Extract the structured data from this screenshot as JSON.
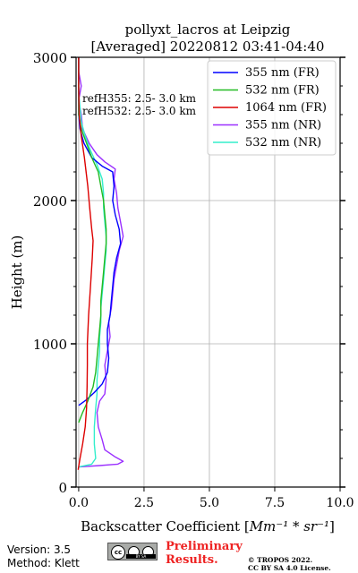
{
  "chart_data": {
    "type": "line",
    "title_line1": "pollyxt_lacros at Leipzig",
    "title_line2": "[Averaged] 20220812 03:41-04:40",
    "xlabel": "Backscatter Coefficient [",
    "xlabel_unit": "Mm⁻¹ * sr⁻¹",
    "xlabel_end": "]",
    "ylabel": "Height (m)",
    "xlim": [
      -0.1,
      10.0
    ],
    "ylim": [
      0,
      3000
    ],
    "x_ticks": [
      0.0,
      2.5,
      5.0,
      7.5,
      10.0
    ],
    "x_tick_labels": [
      "0.0",
      "2.5",
      "5.0",
      "7.5",
      "10.0"
    ],
    "y_ticks": [
      0,
      1000,
      2000,
      3000
    ],
    "y_tick_labels": [
      "0",
      "1000",
      "2000",
      "3000"
    ],
    "grid": true,
    "legend_position": "top-right",
    "annotations": [
      "refH355:  2.5- 3.0 km",
      "refH532:  2.5- 3.0 km"
    ],
    "series": [
      {
        "name": "355 nm (FR)",
        "color": "#0000ff",
        "points": [
          [
            0.0,
            570
          ],
          [
            0.3,
            610
          ],
          [
            0.6,
            660
          ],
          [
            0.9,
            720
          ],
          [
            1.1,
            800
          ],
          [
            1.15,
            900
          ],
          [
            1.1,
            1000
          ],
          [
            1.1,
            1100
          ],
          [
            1.2,
            1200
          ],
          [
            1.25,
            1300
          ],
          [
            1.3,
            1400
          ],
          [
            1.35,
            1500
          ],
          [
            1.45,
            1600
          ],
          [
            1.6,
            1700
          ],
          [
            1.55,
            1800
          ],
          [
            1.4,
            1900
          ],
          [
            1.3,
            2000
          ],
          [
            1.35,
            2100
          ],
          [
            1.3,
            2200
          ],
          [
            0.9,
            2240
          ],
          [
            0.5,
            2300
          ],
          [
            0.2,
            2400
          ],
          [
            0.05,
            2500
          ],
          [
            0.0,
            2600
          ],
          [
            0.0,
            2800
          ],
          [
            0.0,
            3000
          ]
        ]
      },
      {
        "name": "532 nm (FR)",
        "color": "#22bb22",
        "points": [
          [
            0.0,
            450
          ],
          [
            0.15,
            520
          ],
          [
            0.35,
            600
          ],
          [
            0.55,
            700
          ],
          [
            0.65,
            800
          ],
          [
            0.7,
            900
          ],
          [
            0.75,
            1000
          ],
          [
            0.8,
            1100
          ],
          [
            0.85,
            1200
          ],
          [
            0.85,
            1300
          ],
          [
            0.9,
            1400
          ],
          [
            0.95,
            1500
          ],
          [
            1.0,
            1600
          ],
          [
            1.05,
            1700
          ],
          [
            1.05,
            1800
          ],
          [
            1.0,
            1900
          ],
          [
            0.95,
            2000
          ],
          [
            0.85,
            2100
          ],
          [
            0.75,
            2200
          ],
          [
            0.5,
            2300
          ],
          [
            0.3,
            2400
          ],
          [
            0.1,
            2500
          ],
          [
            0.0,
            2600
          ],
          [
            0.0,
            3000
          ]
        ]
      },
      {
        "name": "1064 nm (FR)",
        "color": "#dd0000",
        "points": [
          [
            -0.02,
            120
          ],
          [
            0.05,
            200
          ],
          [
            0.15,
            300
          ],
          [
            0.25,
            420
          ],
          [
            0.3,
            550
          ],
          [
            0.32,
            700
          ],
          [
            0.33,
            850
          ],
          [
            0.33,
            1000
          ],
          [
            0.38,
            1200
          ],
          [
            0.45,
            1400
          ],
          [
            0.52,
            1600
          ],
          [
            0.55,
            1720
          ],
          [
            0.5,
            1800
          ],
          [
            0.42,
            1950
          ],
          [
            0.35,
            2100
          ],
          [
            0.22,
            2300
          ],
          [
            0.1,
            2450
          ],
          [
            0.02,
            2600
          ],
          [
            0.0,
            2800
          ],
          [
            0.0,
            3000
          ]
        ]
      },
      {
        "name": "355 nm (NR)",
        "color": "#9b30ff",
        "points": [
          [
            0.0,
            140
          ],
          [
            0.8,
            150
          ],
          [
            1.5,
            160
          ],
          [
            1.7,
            180
          ],
          [
            1.4,
            210
          ],
          [
            1.0,
            260
          ],
          [
            0.9,
            330
          ],
          [
            0.75,
            420
          ],
          [
            0.7,
            520
          ],
          [
            0.8,
            600
          ],
          [
            1.0,
            650
          ],
          [
            1.05,
            750
          ],
          [
            1.0,
            850
          ],
          [
            1.1,
            950
          ],
          [
            1.2,
            1050
          ],
          [
            1.15,
            1150
          ],
          [
            1.25,
            1250
          ],
          [
            1.3,
            1350
          ],
          [
            1.35,
            1450
          ],
          [
            1.45,
            1550
          ],
          [
            1.55,
            1650
          ],
          [
            1.7,
            1750
          ],
          [
            1.6,
            1850
          ],
          [
            1.5,
            1950
          ],
          [
            1.45,
            2050
          ],
          [
            1.35,
            2150
          ],
          [
            1.4,
            2220
          ],
          [
            1.0,
            2270
          ],
          [
            0.7,
            2320
          ],
          [
            0.4,
            2400
          ],
          [
            0.15,
            2500
          ],
          [
            0.1,
            2600
          ],
          [
            0.0,
            2700
          ],
          [
            0.1,
            2800
          ],
          [
            0.0,
            2900
          ],
          [
            0.0,
            3000
          ]
        ]
      },
      {
        "name": "532 nm (NR)",
        "color": "#33eecc",
        "points": [
          [
            0.0,
            140
          ],
          [
            0.5,
            160
          ],
          [
            0.65,
            200
          ],
          [
            0.6,
            300
          ],
          [
            0.6,
            420
          ],
          [
            0.65,
            550
          ],
          [
            0.7,
            650
          ],
          [
            0.7,
            750
          ],
          [
            0.75,
            850
          ],
          [
            0.8,
            950
          ],
          [
            0.8,
            1050
          ],
          [
            0.85,
            1150
          ],
          [
            0.85,
            1250
          ],
          [
            0.9,
            1350
          ],
          [
            0.95,
            1450
          ],
          [
            1.0,
            1550
          ],
          [
            1.05,
            1650
          ],
          [
            1.05,
            1750
          ],
          [
            1.0,
            1850
          ],
          [
            0.95,
            1950
          ],
          [
            0.95,
            2050
          ],
          [
            0.9,
            2150
          ],
          [
            0.7,
            2250
          ],
          [
            0.45,
            2350
          ],
          [
            0.25,
            2450
          ],
          [
            0.1,
            2550
          ],
          [
            0.05,
            2650
          ],
          [
            0.0,
            2750
          ],
          [
            0.0,
            2900
          ],
          [
            0.0,
            3000
          ]
        ]
      }
    ]
  },
  "footer": {
    "version": "Version: 3.5",
    "method": "Method: Klett",
    "license_badge": "BY SA",
    "preliminary_line1": "Preliminary",
    "preliminary_line2": "Results.",
    "copyright_line1": "© TROPOS 2022.",
    "copyright_line2": "CC BY SA 4.0 License."
  }
}
